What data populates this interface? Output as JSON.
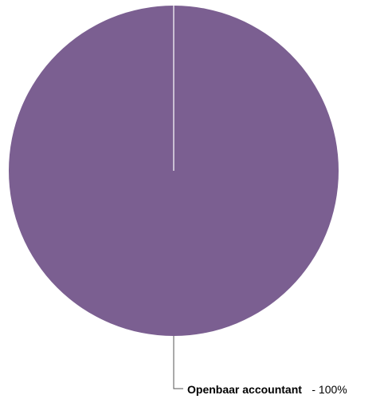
{
  "chart_data": {
    "type": "pie",
    "title": "",
    "categories": [
      "Openbaar accountant"
    ],
    "values": [
      100
    ],
    "slice_labels": [
      {
        "name": "Openbaar accountant",
        "percent_text": "- 100%"
      }
    ],
    "colors": [
      "#7b5f91"
    ],
    "legend": "none",
    "label_placement": "bottom-right"
  }
}
